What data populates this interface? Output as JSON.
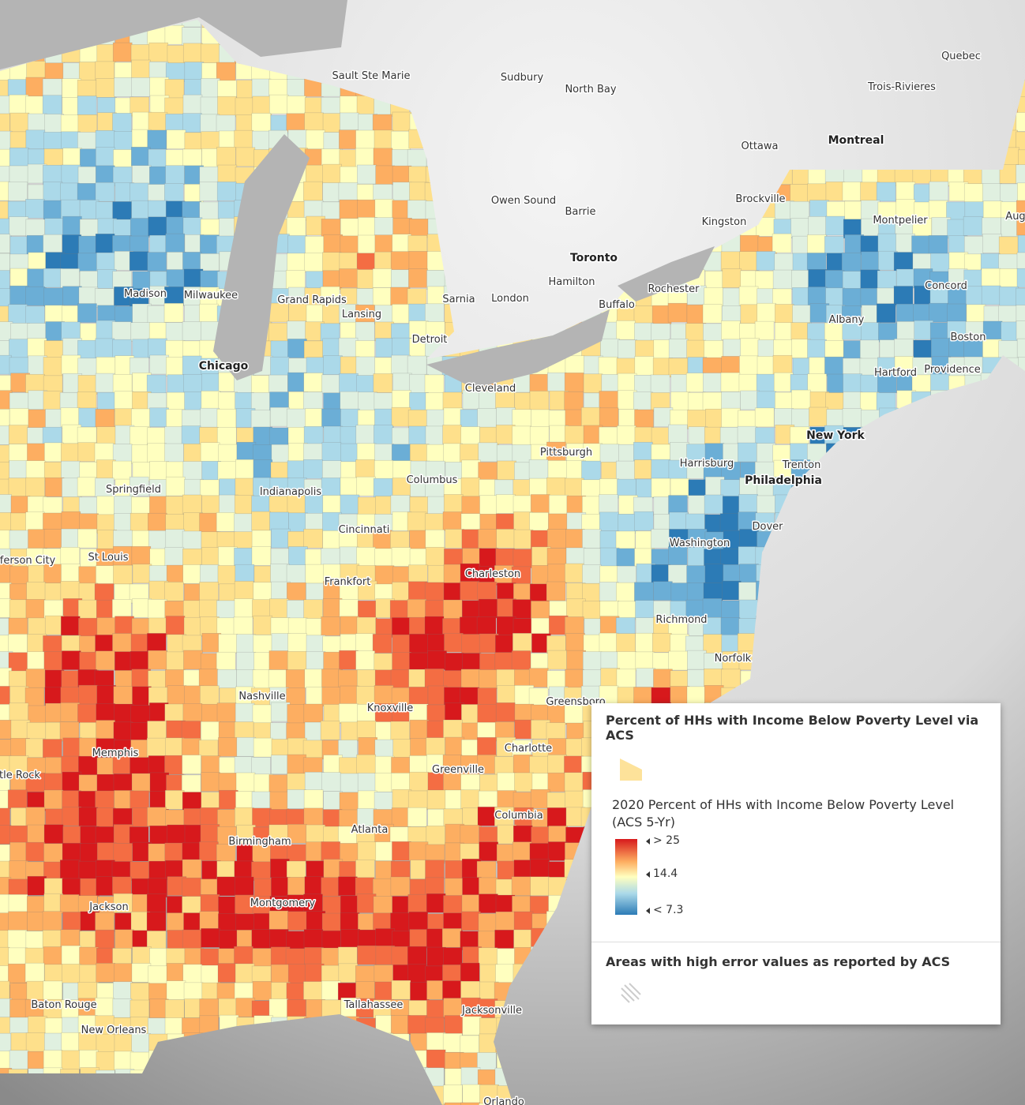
{
  "cities": [
    "Sault Ste Marie",
    "Sudbury",
    "North Bay",
    "Quebec",
    "Trois-Rivieres",
    "Ottawa",
    "Montreal",
    "Owen Sound",
    "Barrie",
    "Brockville",
    "Kingston",
    "Montpelier",
    "Aug",
    "Toronto",
    "Hamilton",
    "Rochester",
    "Buffalo",
    "Sarnia",
    "London",
    "Concord",
    "Madison",
    "Milwaukee",
    "Grand Rapids",
    "Lansing",
    "Albany",
    "Boston",
    "Detroit",
    "Chicago",
    "Hartford",
    "Providence",
    "Cleveland",
    "New York",
    "Pittsburgh",
    "Harrisburg",
    "Trenton",
    "Philadelphia",
    "Columbus",
    "Springfield",
    "Indianapolis",
    "Dover",
    "Cincinnati",
    "Washington",
    "ferson City",
    "St Louis",
    "Charleston",
    "Frankfort",
    "Richmond",
    "Norfolk",
    "Nashville",
    "Greensboro",
    "Knoxville",
    "Memphis",
    "Charlotte",
    "tle Rock",
    "Greenville",
    "Columbia",
    "Atlanta",
    "Birmingham",
    "Montgomery",
    "Jackson",
    "Baton Rouge",
    "Tallahassee",
    "Jacksonville",
    "New Orleans",
    "Orlando"
  ],
  "legend": {
    "title": "Percent of HHs with Income Below Poverty Level via ACS",
    "subtitle": "2020 Percent of HHs with Income Below Poverty Level (ACS 5-Yr)",
    "stops": [
      "> 25",
      "14.4",
      "< 7.3"
    ],
    "error_title": "Areas with high error values as reported by ACS"
  }
}
